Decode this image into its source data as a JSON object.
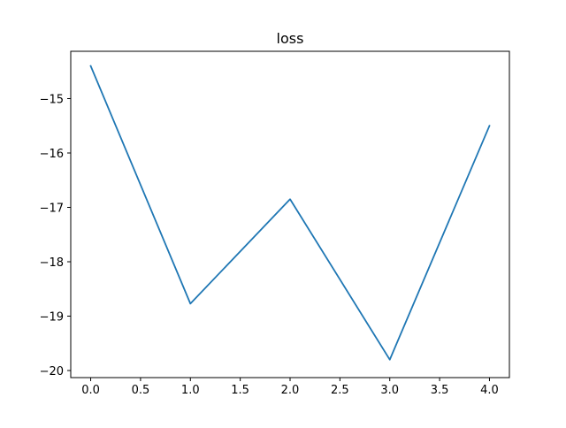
{
  "chart_data": {
    "type": "line",
    "title": "loss",
    "xlabel": "",
    "ylabel": "",
    "x": [
      0,
      1,
      2,
      3,
      4
    ],
    "series": [
      {
        "values": [
          -14.4,
          -18.77,
          -16.85,
          -19.8,
          -15.5
        ],
        "color": "#1f77b4"
      }
    ],
    "xlim": [
      -0.2,
      4.2
    ],
    "ylim": [
      -20.13,
      -14.13
    ],
    "xticks": [
      {
        "value": 0.0,
        "label": "0.0"
      },
      {
        "value": 0.5,
        "label": "0.5"
      },
      {
        "value": 1.0,
        "label": "1.0"
      },
      {
        "value": 1.5,
        "label": "1.5"
      },
      {
        "value": 2.0,
        "label": "2.0"
      },
      {
        "value": 2.5,
        "label": "2.5"
      },
      {
        "value": 3.0,
        "label": "3.0"
      },
      {
        "value": 3.5,
        "label": "3.5"
      },
      {
        "value": 4.0,
        "label": "4.0"
      }
    ],
    "yticks": [
      {
        "value": -15,
        "label": "−15"
      },
      {
        "value": -16,
        "label": "−16"
      },
      {
        "value": -17,
        "label": "−17"
      },
      {
        "value": -18,
        "label": "−18"
      },
      {
        "value": -19,
        "label": "−19"
      },
      {
        "value": -20,
        "label": "−20"
      }
    ],
    "grid": false,
    "legend": "none"
  }
}
